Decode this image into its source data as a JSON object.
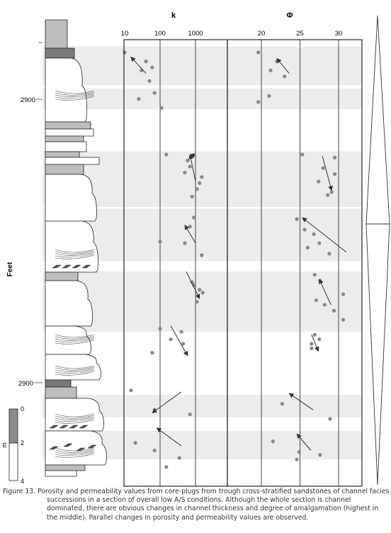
{
  "panels": {
    "k": {
      "title": "k",
      "tick_labels": [
        "10",
        "100",
        "1000"
      ],
      "tick_values": [
        10,
        100,
        1000
      ],
      "scale": "log",
      "points": [
        [
          10,
          2876
        ],
        [
          40,
          2882
        ],
        [
          30,
          2888
        ],
        [
          60,
          2886
        ],
        [
          50,
          2895
        ],
        [
          70,
          2903
        ],
        [
          25,
          2907
        ],
        [
          110,
          2913
        ],
        [
          150,
          2944
        ],
        [
          600,
          2948
        ],
        [
          700,
          2952
        ],
        [
          500,
          2956
        ],
        [
          1500,
          2959
        ],
        [
          1300,
          2963
        ],
        [
          1100,
          2967
        ],
        [
          800,
          2972
        ],
        [
          900,
          2986
        ],
        [
          700,
          2992
        ],
        [
          500,
          3003
        ],
        [
          1500,
          3011
        ],
        [
          100,
          3002
        ],
        [
          800,
          3029
        ],
        [
          900,
          3031
        ],
        [
          1300,
          3034
        ],
        [
          1600,
          3036
        ],
        [
          1100,
          3042
        ],
        [
          100,
          3060
        ],
        [
          400,
          3062
        ],
        [
          200,
          3067
        ],
        [
          450,
          3070
        ],
        [
          60,
          3076
        ],
        [
          15,
          3101
        ],
        [
          70,
          3114
        ],
        [
          700,
          3117
        ],
        [
          20,
          3136
        ],
        [
          70,
          3141
        ],
        [
          350,
          3146
        ],
        [
          150,
          3152
        ]
      ]
    },
    "phi": {
      "title": "Φ",
      "tick_labels": [
        "20",
        "25",
        "30"
      ],
      "tick_values": [
        20,
        25,
        30
      ],
      "scale": "linear",
      "points": [
        [
          19.6,
          2876
        ],
        [
          22,
          2882
        ],
        [
          21.2,
          2888
        ],
        [
          23,
          2892
        ],
        [
          21,
          2905
        ],
        [
          19.6,
          2909
        ],
        [
          25.3,
          2944
        ],
        [
          29.5,
          2946
        ],
        [
          28,
          2953
        ],
        [
          29.5,
          2957
        ],
        [
          27.4,
          2962
        ],
        [
          29.1,
          2969
        ],
        [
          28.6,
          2971
        ],
        [
          24.6,
          2987
        ],
        [
          25.6,
          2994
        ],
        [
          26.8,
          2997
        ],
        [
          27.5,
          3003
        ],
        [
          26,
          3006
        ],
        [
          28.8,
          3010
        ],
        [
          26.9,
          3024
        ],
        [
          27.6,
          3028
        ],
        [
          30.6,
          3037
        ],
        [
          27.1,
          3041
        ],
        [
          28.2,
          3044
        ],
        [
          29.4,
          3048
        ],
        [
          30.6,
          3054
        ],
        [
          26.9,
          3064
        ],
        [
          27.5,
          3067
        ],
        [
          26.5,
          3070
        ],
        [
          26.5,
          3073
        ],
        [
          22.7,
          3110
        ],
        [
          28.9,
          3120
        ],
        [
          21.5,
          3135
        ],
        [
          24.9,
          3142
        ],
        [
          27.6,
          3144
        ],
        [
          24.6,
          3147
        ]
      ]
    }
  },
  "arrows": {
    "k": [
      [
        40,
        2890,
        15,
        2879
      ],
      [
        1000,
        2945,
        700,
        2944
      ],
      [
        1000,
        2962,
        700,
        2944
      ],
      [
        1000,
        3003,
        500,
        2991
      ],
      [
        550,
        3022,
        1300,
        3040
      ],
      [
        200,
        3058,
        600,
        3078
      ],
      [
        400,
        3102,
        60,
        3116
      ],
      [
        400,
        3138,
        80,
        3126
      ]
    ],
    "phi": [
      [
        23.6,
        2890,
        22,
        2880
      ],
      [
        27.9,
        2945,
        29.1,
        2968
      ],
      [
        31,
        3009,
        25.3,
        2986
      ],
      [
        29,
        3044,
        27.5,
        3027
      ],
      [
        26.5,
        3064,
        27.4,
        3075
      ],
      [
        26.7,
        3114,
        23.6,
        3103
      ],
      [
        26.4,
        3141,
        24.6,
        3130
      ]
    ]
  },
  "depth_axis": {
    "label": "Feet",
    "tick_labels": [
      "2900",
      "2900"
    ],
    "range": [
      2860,
      3162
    ]
  },
  "grain_scale": {
    "ticks": [
      "0",
      "2",
      "4"
    ],
    "unit": "m"
  },
  "bands": [
    [
      2872,
      2898
    ],
    [
      2900,
      2914
    ],
    [
      2942,
      2979
    ],
    [
      2980,
      3015
    ],
    [
      3022,
      3062
    ],
    [
      3104,
      3119
    ],
    [
      3128,
      3147
    ]
  ],
  "caption": {
    "line1": "Figure 13. Porosity and permeability values from core-plugs from trough cross-stratified sandstones of channel facies",
    "line2": "successions in a section of overall low A/S conditions. Although the whole section is channel dominated, there are obvious changes in channel thickness and degree of amalgamation (highest in the middle). Parallel changes in porosity and permeability values are observed."
  },
  "colors": {
    "band": "#ececec",
    "point": "#888888",
    "line": "#555555",
    "frame": "#111111",
    "rock_fill": "#ffffff",
    "rock_grey": "#bdbdbd",
    "rock_dark": "#7a7a7a"
  }
}
